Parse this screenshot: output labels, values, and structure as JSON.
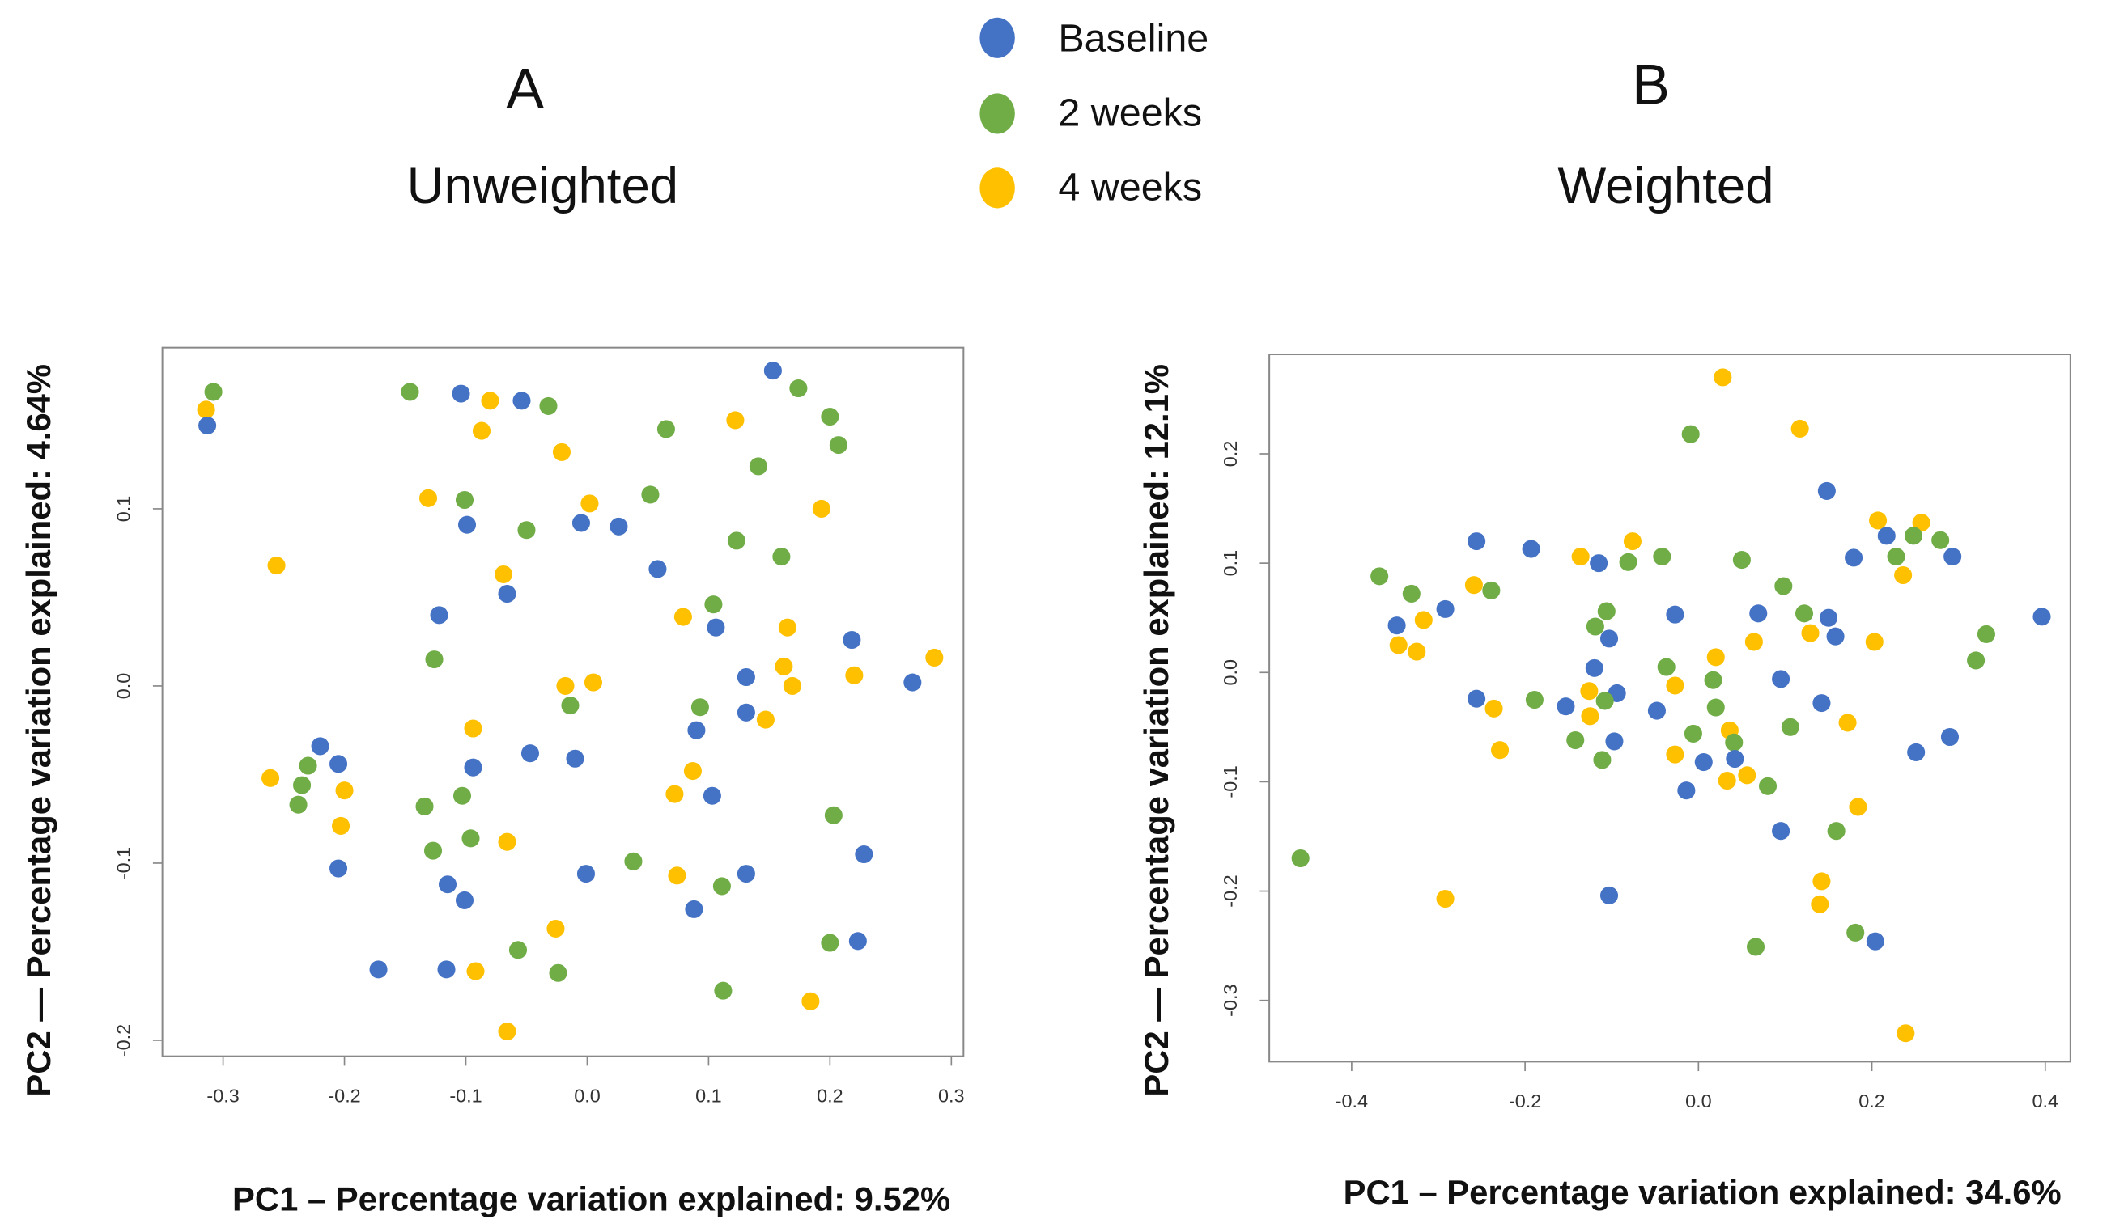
{
  "legend": [
    {
      "label": "Baseline",
      "color": "#4472C4"
    },
    {
      "label": "2 weeks",
      "color": "#70AD47"
    },
    {
      "label": "4 weeks",
      "color": "#FFC000"
    }
  ],
  "chart_data": [
    {
      "type": "scatter",
      "panel": "A",
      "title": "Unweighted",
      "xlabel": "PC1 – Percentage variation explained: 9.52%",
      "ylabel": "PC2 — Percentage variation explained: 4.64%",
      "xlim": [
        -0.35,
        0.31
      ],
      "ylim": [
        -0.209,
        0.191
      ],
      "xticks": [
        -0.3,
        -0.2,
        -0.1,
        0.0,
        0.1,
        0.2,
        0.3
      ],
      "xtick_labels": [
        "-0.3",
        "-0.2",
        "-0.1",
        "0.0",
        "0.1",
        "0.2",
        "0.3"
      ],
      "yticks": [
        -0.2,
        -0.1,
        0.0,
        0.1
      ],
      "ytick_labels": [
        "-0.2",
        "-0.1",
        "0.0",
        "0.1"
      ],
      "groups": [
        "Baseline",
        "2 weeks",
        "4 weeks"
      ],
      "points": [
        [
          -0.308,
          0.166,
          1
        ],
        [
          -0.314,
          0.156,
          2
        ],
        [
          -0.313,
          0.147,
          0
        ],
        [
          -0.146,
          0.166,
          1
        ],
        [
          -0.104,
          0.165,
          0
        ],
        [
          -0.054,
          0.161,
          0
        ],
        [
          -0.08,
          0.161,
          2
        ],
        [
          -0.032,
          0.158,
          1
        ],
        [
          -0.087,
          0.144,
          2
        ],
        [
          -0.021,
          0.132,
          2
        ],
        [
          0.153,
          0.178,
          0
        ],
        [
          0.174,
          0.168,
          1
        ],
        [
          0.2,
          0.152,
          1
        ],
        [
          0.122,
          0.15,
          2
        ],
        [
          0.207,
          0.136,
          1
        ],
        [
          0.065,
          0.145,
          1
        ],
        [
          0.141,
          0.124,
          1
        ],
        [
          -0.131,
          0.106,
          2
        ],
        [
          -0.101,
          0.105,
          1
        ],
        [
          0.002,
          0.103,
          2
        ],
        [
          0.052,
          0.108,
          1
        ],
        [
          0.193,
          0.1,
          2
        ],
        [
          -0.099,
          0.091,
          0
        ],
        [
          -0.05,
          0.088,
          1
        ],
        [
          -0.005,
          0.092,
          0
        ],
        [
          0.026,
          0.09,
          0
        ],
        [
          -0.256,
          0.068,
          2
        ],
        [
          0.058,
          0.066,
          0
        ],
        [
          0.123,
          0.082,
          1
        ],
        [
          0.16,
          0.073,
          1
        ],
        [
          -0.069,
          0.063,
          2
        ],
        [
          -0.066,
          0.052,
          0
        ],
        [
          -0.122,
          0.04,
          0
        ],
        [
          0.104,
          0.046,
          1
        ],
        [
          0.106,
          0.033,
          0
        ],
        [
          0.079,
          0.039,
          2
        ],
        [
          0.165,
          0.033,
          2
        ],
        [
          -0.126,
          0.015,
          1
        ],
        [
          0.162,
          0.011,
          2
        ],
        [
          0.22,
          0.006,
          2
        ],
        [
          0.218,
          0.026,
          0
        ],
        [
          0.131,
          0.005,
          0
        ],
        [
          0.169,
          0.0,
          2
        ],
        [
          0.268,
          0.002,
          0
        ],
        [
          0.286,
          0.016,
          2
        ],
        [
          -0.018,
          0.0,
          2
        ],
        [
          0.005,
          0.002,
          2
        ],
        [
          -0.014,
          -0.011,
          1
        ],
        [
          0.093,
          -0.012,
          1
        ],
        [
          0.131,
          -0.015,
          0
        ],
        [
          0.147,
          -0.019,
          2
        ],
        [
          -0.094,
          -0.024,
          2
        ],
        [
          0.09,
          -0.025,
          0
        ],
        [
          -0.22,
          -0.034,
          0
        ],
        [
          -0.205,
          -0.044,
          0
        ],
        [
          -0.23,
          -0.045,
          1
        ],
        [
          -0.261,
          -0.052,
          2
        ],
        [
          -0.235,
          -0.056,
          1
        ],
        [
          -0.2,
          -0.059,
          2
        ],
        [
          -0.238,
          -0.067,
          1
        ],
        [
          -0.094,
          -0.046,
          0
        ],
        [
          -0.047,
          -0.038,
          0
        ],
        [
          -0.01,
          -0.041,
          0
        ],
        [
          0.087,
          -0.048,
          2
        ],
        [
          -0.103,
          -0.062,
          1
        ],
        [
          0.072,
          -0.061,
          2
        ],
        [
          0.103,
          -0.062,
          0
        ],
        [
          -0.134,
          -0.068,
          1
        ],
        [
          -0.203,
          -0.079,
          2
        ],
        [
          0.203,
          -0.073,
          1
        ],
        [
          -0.096,
          -0.086,
          1
        ],
        [
          -0.066,
          -0.088,
          2
        ],
        [
          -0.127,
          -0.093,
          1
        ],
        [
          0.228,
          -0.095,
          0
        ],
        [
          -0.205,
          -0.103,
          0
        ],
        [
          0.038,
          -0.099,
          1
        ],
        [
          -0.001,
          -0.106,
          0
        ],
        [
          0.074,
          -0.107,
          2
        ],
        [
          0.131,
          -0.106,
          0
        ],
        [
          0.111,
          -0.113,
          1
        ],
        [
          -0.115,
          -0.112,
          0
        ],
        [
          -0.101,
          -0.121,
          0
        ],
        [
          0.088,
          -0.126,
          0
        ],
        [
          -0.026,
          -0.137,
          2
        ],
        [
          0.2,
          -0.145,
          1
        ],
        [
          0.223,
          -0.144,
          0
        ],
        [
          -0.057,
          -0.149,
          1
        ],
        [
          -0.172,
          -0.16,
          0
        ],
        [
          -0.116,
          -0.16,
          0
        ],
        [
          -0.092,
          -0.161,
          2
        ],
        [
          -0.024,
          -0.162,
          1
        ],
        [
          0.112,
          -0.172,
          1
        ],
        [
          0.184,
          -0.178,
          2
        ],
        [
          -0.066,
          -0.195,
          2
        ]
      ]
    },
    {
      "type": "scatter",
      "panel": "B",
      "title": "Weighted",
      "xlabel": "PC1 – Percentage variation explained: 34.6%",
      "ylabel": "PC2 — Percentage variation explained: 12.1%",
      "xlim": [
        -0.495,
        0.429
      ],
      "ylim": [
        -0.356,
        0.291
      ],
      "xticks": [
        -0.4,
        -0.2,
        0.0,
        0.2,
        0.4
      ],
      "xtick_labels": [
        "-0.4",
        "-0.2",
        "0.0",
        "0.2",
        "0.4"
      ],
      "yticks": [
        -0.3,
        -0.2,
        -0.1,
        0.0,
        0.1,
        0.2
      ],
      "ytick_labels": [
        "-0.3",
        "-0.2",
        "-0.1",
        "0.0",
        "0.1",
        "0.2"
      ],
      "groups": [
        "Baseline",
        "2 weeks",
        "4 weeks"
      ],
      "points": [
        [
          0.028,
          0.27,
          2
        ],
        [
          -0.009,
          0.218,
          1
        ],
        [
          0.117,
          0.223,
          2
        ],
        [
          0.148,
          0.166,
          0
        ],
        [
          -0.256,
          0.12,
          0
        ],
        [
          -0.193,
          0.113,
          0
        ],
        [
          -0.368,
          0.088,
          1
        ],
        [
          -0.136,
          0.106,
          2
        ],
        [
          -0.115,
          0.1,
          0
        ],
        [
          -0.081,
          0.101,
          1
        ],
        [
          -0.076,
          0.12,
          2
        ],
        [
          -0.042,
          0.106,
          1
        ],
        [
          0.05,
          0.103,
          1
        ],
        [
          -0.259,
          0.08,
          2
        ],
        [
          -0.239,
          0.075,
          1
        ],
        [
          -0.331,
          0.072,
          1
        ],
        [
          0.207,
          0.139,
          2
        ],
        [
          0.217,
          0.125,
          0
        ],
        [
          0.257,
          0.137,
          2
        ],
        [
          0.248,
          0.125,
          1
        ],
        [
          0.279,
          0.121,
          1
        ],
        [
          0.293,
          0.106,
          0
        ],
        [
          0.228,
          0.106,
          1
        ],
        [
          0.179,
          0.105,
          0
        ],
        [
          0.236,
          0.089,
          2
        ],
        [
          0.098,
          0.079,
          1
        ],
        [
          -0.292,
          0.058,
          0
        ],
        [
          -0.317,
          0.048,
          2
        ],
        [
          -0.348,
          0.043,
          0
        ],
        [
          -0.106,
          0.056,
          1
        ],
        [
          -0.027,
          0.053,
          0
        ],
        [
          0.069,
          0.054,
          0
        ],
        [
          0.122,
          0.054,
          1
        ],
        [
          0.15,
          0.05,
          0
        ],
        [
          -0.119,
          0.042,
          1
        ],
        [
          -0.103,
          0.031,
          0
        ],
        [
          0.064,
          0.028,
          2
        ],
        [
          0.129,
          0.036,
          2
        ],
        [
          0.158,
          0.033,
          0
        ],
        [
          0.332,
          0.035,
          1
        ],
        [
          0.396,
          0.051,
          0
        ],
        [
          -0.346,
          0.025,
          2
        ],
        [
          -0.325,
          0.019,
          2
        ],
        [
          0.02,
          0.014,
          2
        ],
        [
          0.203,
          0.028,
          2
        ],
        [
          0.32,
          0.011,
          1
        ],
        [
          -0.037,
          0.005,
          1
        ],
        [
          -0.12,
          0.004,
          0
        ],
        [
          0.095,
          -0.006,
          0
        ],
        [
          0.017,
          -0.007,
          1
        ],
        [
          -0.027,
          -0.012,
          2
        ],
        [
          -0.126,
          -0.017,
          2
        ],
        [
          -0.094,
          -0.019,
          0
        ],
        [
          -0.108,
          -0.026,
          1
        ],
        [
          -0.256,
          -0.024,
          0
        ],
        [
          -0.189,
          -0.025,
          1
        ],
        [
          -0.153,
          -0.031,
          0
        ],
        [
          -0.236,
          -0.033,
          2
        ],
        [
          -0.048,
          -0.035,
          0
        ],
        [
          0.02,
          -0.032,
          1
        ],
        [
          0.142,
          -0.028,
          0
        ],
        [
          -0.125,
          -0.04,
          2
        ],
        [
          0.036,
          -0.053,
          2
        ],
        [
          -0.006,
          -0.056,
          1
        ],
        [
          0.106,
          -0.05,
          1
        ],
        [
          0.172,
          -0.046,
          2
        ],
        [
          0.29,
          -0.059,
          0
        ],
        [
          -0.142,
          -0.062,
          1
        ],
        [
          -0.097,
          -0.063,
          0
        ],
        [
          0.041,
          -0.064,
          1
        ],
        [
          -0.229,
          -0.071,
          2
        ],
        [
          0.251,
          -0.073,
          0
        ],
        [
          -0.027,
          -0.075,
          2
        ],
        [
          0.006,
          -0.082,
          0
        ],
        [
          0.042,
          -0.079,
          0
        ],
        [
          -0.111,
          -0.08,
          1
        ],
        [
          0.056,
          -0.094,
          2
        ],
        [
          0.033,
          -0.099,
          2
        ],
        [
          0.08,
          -0.104,
          1
        ],
        [
          -0.014,
          -0.108,
          0
        ],
        [
          0.184,
          -0.123,
          2
        ],
        [
          0.095,
          -0.145,
          0
        ],
        [
          0.159,
          -0.145,
          1
        ],
        [
          -0.459,
          -0.17,
          1
        ],
        [
          0.142,
          -0.191,
          2
        ],
        [
          -0.103,
          -0.204,
          0
        ],
        [
          -0.292,
          -0.207,
          2
        ],
        [
          0.14,
          -0.212,
          2
        ],
        [
          0.181,
          -0.238,
          1
        ],
        [
          0.204,
          -0.246,
          0
        ],
        [
          0.066,
          -0.251,
          1
        ],
        [
          0.239,
          -0.33,
          2
        ]
      ]
    }
  ]
}
